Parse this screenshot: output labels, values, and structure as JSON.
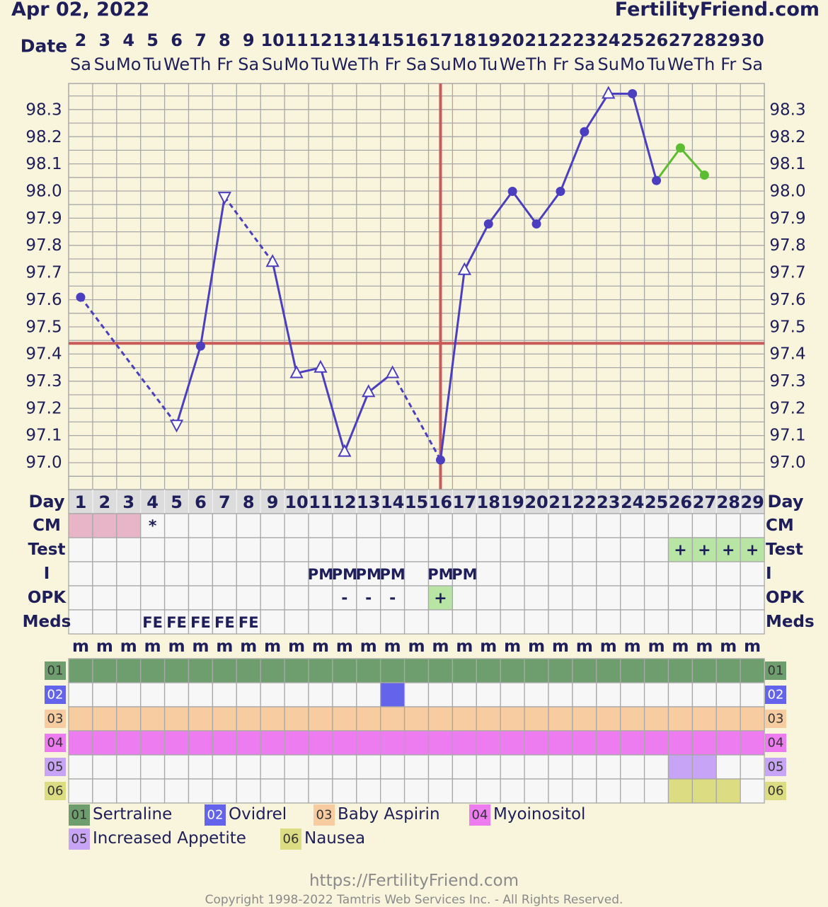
{
  "header": {
    "date": "Apr 02, 2022",
    "brand": "FertilityFriend.com"
  },
  "footer": {
    "url": "https://FertilityFriend.com",
    "copyright": "Copyright 1998-2022 Tamtris Web Services Inc. - All Rights Reserved."
  },
  "colors": {
    "line": "#4b3fbf",
    "line_after": "#5cbc32",
    "coverline": "#c85a5a",
    "grid": "#a8a8a8",
    "cm_pink": "#e8b4c8",
    "positive_green": "#b8e4a4",
    "cat01": "#6f9e6e",
    "cat02": "#6363ec",
    "cat03": "#f6cca0",
    "cat04": "#ec7cf0",
    "cat05": "#c8a4f6",
    "cat06": "#dcdc82"
  },
  "row_labels": {
    "date": "Date",
    "day": "Day",
    "cm": "CM",
    "test": "Test",
    "i": "I",
    "opk": "OPK",
    "meds": "Meds"
  },
  "chart_data": {
    "type": "line",
    "title": "Apr 02, 2022",
    "dates": [
      "2",
      "3",
      "4",
      "5",
      "6",
      "7",
      "8",
      "9",
      "10",
      "11",
      "12",
      "13",
      "14",
      "15",
      "16",
      "17",
      "18",
      "19",
      "20",
      "21",
      "22",
      "23",
      "24",
      "25",
      "26",
      "27",
      "28",
      "29",
      "30"
    ],
    "weekdays": [
      "Sa",
      "Su",
      "Mo",
      "Tu",
      "We",
      "Th",
      "Fr",
      "Sa",
      "Su",
      "Mo",
      "Tu",
      "We",
      "Th",
      "Fr",
      "Sa",
      "Su",
      "Mo",
      "Tu",
      "We",
      "Th",
      "Fr",
      "Sa",
      "Su",
      "Mo",
      "Tu",
      "We",
      "Th",
      "Fr",
      "Sa"
    ],
    "cycle_days": [
      "1",
      "2",
      "3",
      "4",
      "5",
      "6",
      "7",
      "8",
      "9",
      "10",
      "11",
      "12",
      "13",
      "14",
      "15",
      "16",
      "17",
      "18",
      "19",
      "20",
      "21",
      "22",
      "23",
      "24",
      "25",
      "26",
      "27",
      "28",
      "29"
    ],
    "y_ticks": [
      "97.0",
      "97.1",
      "97.2",
      "97.3",
      "97.4",
      "97.5",
      "97.6",
      "97.7",
      "97.8",
      "97.9",
      "98.0",
      "98.1",
      "98.2",
      "98.3"
    ],
    "ylim": [
      96.95,
      98.4
    ],
    "temps": [
      97.61,
      null,
      null,
      null,
      97.14,
      97.43,
      97.98,
      null,
      97.74,
      97.33,
      97.35,
      97.04,
      97.26,
      97.33,
      null,
      97.01,
      97.71,
      97.88,
      98.0,
      97.88,
      98.0,
      98.22,
      98.36,
      98.36,
      98.04,
      98.16,
      98.06,
      null,
      null
    ],
    "markers": [
      "circle",
      "",
      "",
      "",
      "tri-down",
      "circle",
      "tri-down",
      "",
      "tri-up",
      "tri-up",
      "tri-up",
      "tri-up",
      "tri-up",
      "tri-up",
      "",
      "circle",
      "tri-up",
      "circle",
      "circle",
      "circle",
      "circle",
      "circle",
      "tri-up",
      "circle",
      "circle",
      "circle",
      "circle",
      "",
      ""
    ],
    "segment_styles": [
      "dashed",
      "",
      "",
      "",
      "solid",
      "solid",
      "dashed",
      "",
      "solid",
      "solid",
      "solid",
      "solid",
      "solid",
      "dashed",
      "",
      "solid",
      "solid",
      "solid",
      "solid",
      "solid",
      "solid",
      "solid",
      "solid",
      "solid",
      "after",
      "after",
      "",
      "",
      ""
    ],
    "coverline": 97.44,
    "ovulation_day": 16,
    "cm": [
      "pink",
      "pink",
      "pink",
      "*",
      "",
      "",
      "",
      "",
      "",
      "",
      "",
      "",
      "",
      "",
      "",
      "",
      "",
      "",
      "",
      "",
      "",
      "",
      "",
      "",
      "",
      "",
      "",
      "",
      ""
    ],
    "test": [
      "",
      "",
      "",
      "",
      "",
      "",
      "",
      "",
      "",
      "",
      "",
      "",
      "",
      "",
      "",
      "",
      "",
      "",
      "",
      "",
      "",
      "",
      "",
      "",
      "",
      "+",
      "+",
      "+",
      "+"
    ],
    "i": [
      "",
      "",
      "",
      "",
      "",
      "",
      "",
      "",
      "",
      "",
      "PM",
      "PM",
      "PM",
      "PM",
      "",
      "PM",
      "PM",
      "",
      "",
      "",
      "",
      "",
      "",
      "",
      "",
      "",
      "",
      "",
      ""
    ],
    "opk": [
      "",
      "",
      "",
      "",
      "",
      "",
      "",
      "",
      "",
      "",
      "",
      "-",
      "-",
      "-",
      "",
      "+",
      "",
      "",
      "",
      "",
      "",
      "",
      "",
      "",
      "",
      "",
      "",
      "",
      ""
    ],
    "meds": [
      "",
      "",
      "",
      "FE",
      "FE",
      "FE",
      "FE",
      "FE",
      "",
      "",
      "",
      "",
      "",
      "",
      "",
      "",
      "",
      "",
      "",
      "",
      "",
      "",
      "",
      "",
      "",
      "",
      "",
      "",
      ""
    ],
    "mrow": [
      "m",
      "m",
      "m",
      "m",
      "m",
      "m",
      "m",
      "m",
      "m",
      "m",
      "m",
      "m",
      "m",
      "m",
      "m",
      "m",
      "m",
      "m",
      "m",
      "m",
      "m",
      "m",
      "m",
      "m",
      "m",
      "m",
      "m",
      "m",
      "m"
    ],
    "categories": [
      {
        "code": "01",
        "name": "Sertraline",
        "color": "#6f9e6e",
        "days": [
          1,
          2,
          3,
          4,
          5,
          6,
          7,
          8,
          9,
          10,
          11,
          12,
          13,
          14,
          15,
          16,
          17,
          18,
          19,
          20,
          21,
          22,
          23,
          24,
          25,
          26,
          27,
          28,
          29
        ]
      },
      {
        "code": "02",
        "name": "Ovidrel",
        "color": "#6363ec",
        "days": [
          14
        ]
      },
      {
        "code": "03",
        "name": "Baby Aspirin",
        "color": "#f6cca0",
        "days": [
          1,
          2,
          3,
          4,
          5,
          6,
          7,
          8,
          9,
          10,
          11,
          12,
          13,
          14,
          15,
          16,
          17,
          18,
          19,
          20,
          21,
          22,
          23,
          24,
          25,
          26,
          27,
          28,
          29
        ]
      },
      {
        "code": "04",
        "name": "Myoinositol",
        "color": "#ec7cf0",
        "days": [
          1,
          2,
          3,
          4,
          5,
          6,
          7,
          8,
          9,
          10,
          11,
          12,
          13,
          14,
          15,
          16,
          17,
          18,
          19,
          20,
          21,
          22,
          23,
          24,
          25,
          26,
          27,
          28,
          29
        ]
      },
      {
        "code": "05",
        "name": "Increased Appetite",
        "color": "#c8a4f6",
        "days": [
          26,
          27
        ]
      },
      {
        "code": "06",
        "name": "Nausea",
        "color": "#dcdc82",
        "days": [
          26,
          27,
          28
        ]
      }
    ]
  }
}
